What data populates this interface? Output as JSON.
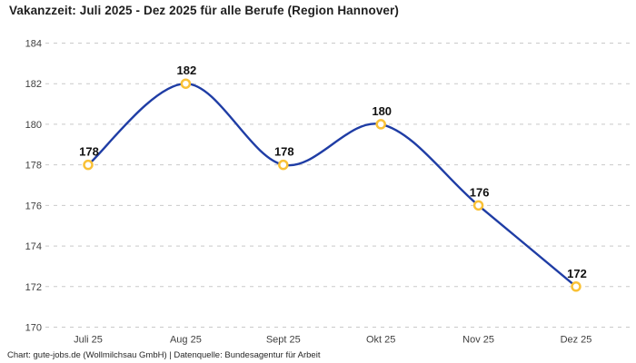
{
  "title": "Vakanzzeit: Juli 2025 - Dez 2025 für alle Berufe (Region Hannover)",
  "footer": "Chart: gute-jobs.de (Wollmilchsau GmbH) | Datenquelle: Bundesagentur für Arbeit",
  "colors": {
    "line": "#1f3da5",
    "marker_stroke": "#f9c136",
    "marker_fill": "#ffffff",
    "grid": "#c9c9c9",
    "title_text": "#1f1f1f",
    "tick_text": "#3f3f3f",
    "data_label_text": "#111111"
  },
  "chart_data": {
    "type": "line",
    "title": "Vakanzzeit: Juli 2025 - Dez 2025 für alle Berufe (Region Hannover)",
    "categories": [
      "Juli 25",
      "Aug 25",
      "Sept 25",
      "Okt 25",
      "Nov 25",
      "Dez 25"
    ],
    "values": [
      178,
      182,
      178,
      180,
      176,
      172
    ],
    "data_labels": [
      "178",
      "182",
      "178",
      "180",
      "176",
      "172"
    ],
    "xlabel": "",
    "ylabel": "",
    "ylim": [
      170,
      184
    ],
    "yticks": [
      170,
      172,
      174,
      176,
      178,
      180,
      182,
      184
    ],
    "grid": "horizontal-dashed",
    "legend": "none",
    "curve": "smooth"
  }
}
